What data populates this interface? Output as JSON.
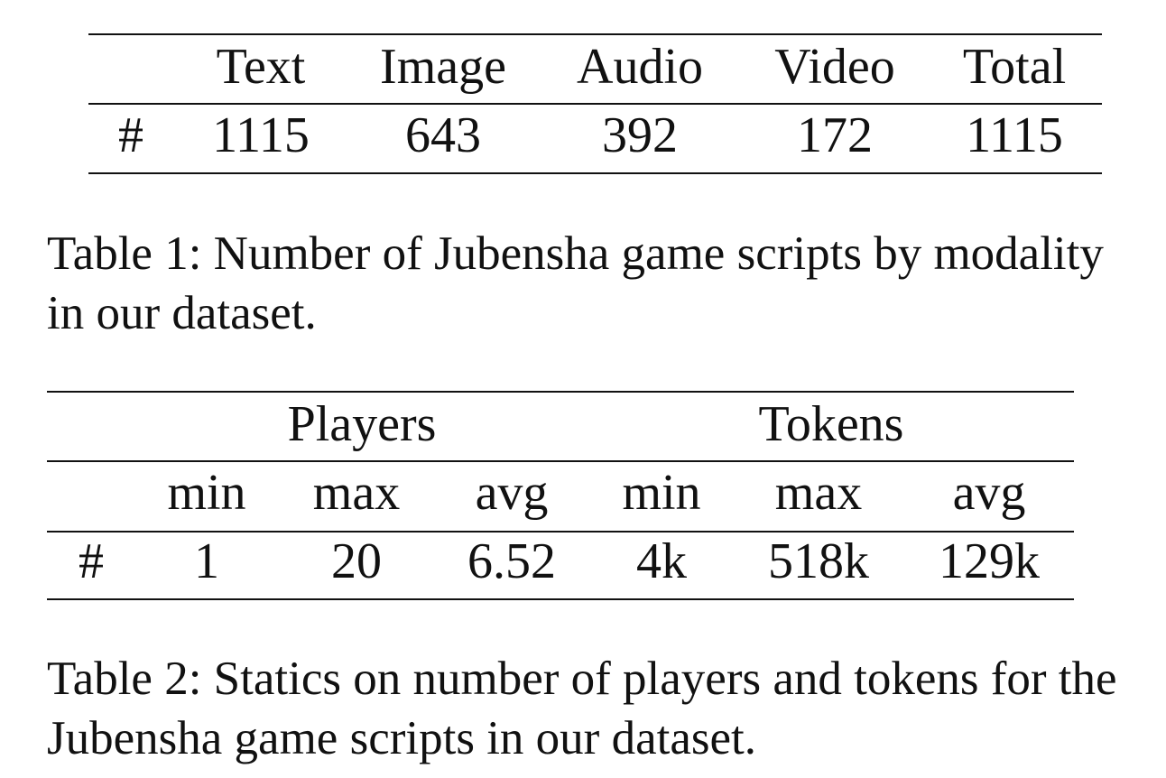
{
  "table1": {
    "headers": [
      "",
      "Text",
      "Image",
      "Audio",
      "Video",
      "Total"
    ],
    "rows": [
      [
        "#",
        "1115",
        "643",
        "392",
        "172",
        "1115"
      ]
    ],
    "caption_line1": "Table 1: Number of Jubensha game scripts by modality",
    "caption_line2": "in our dataset."
  },
  "table2": {
    "group_headers": [
      "Players",
      "Tokens"
    ],
    "subheaders": [
      "",
      "min",
      "max",
      "avg",
      "min",
      "max",
      "avg"
    ],
    "rows": [
      [
        "#",
        "1",
        "20",
        "6.52",
        "4k",
        "518k",
        "129k"
      ]
    ],
    "caption_line1": "Table 2: Statics on number of players and tokens for the",
    "caption_line2": "Jubensha game scripts in our dataset."
  }
}
